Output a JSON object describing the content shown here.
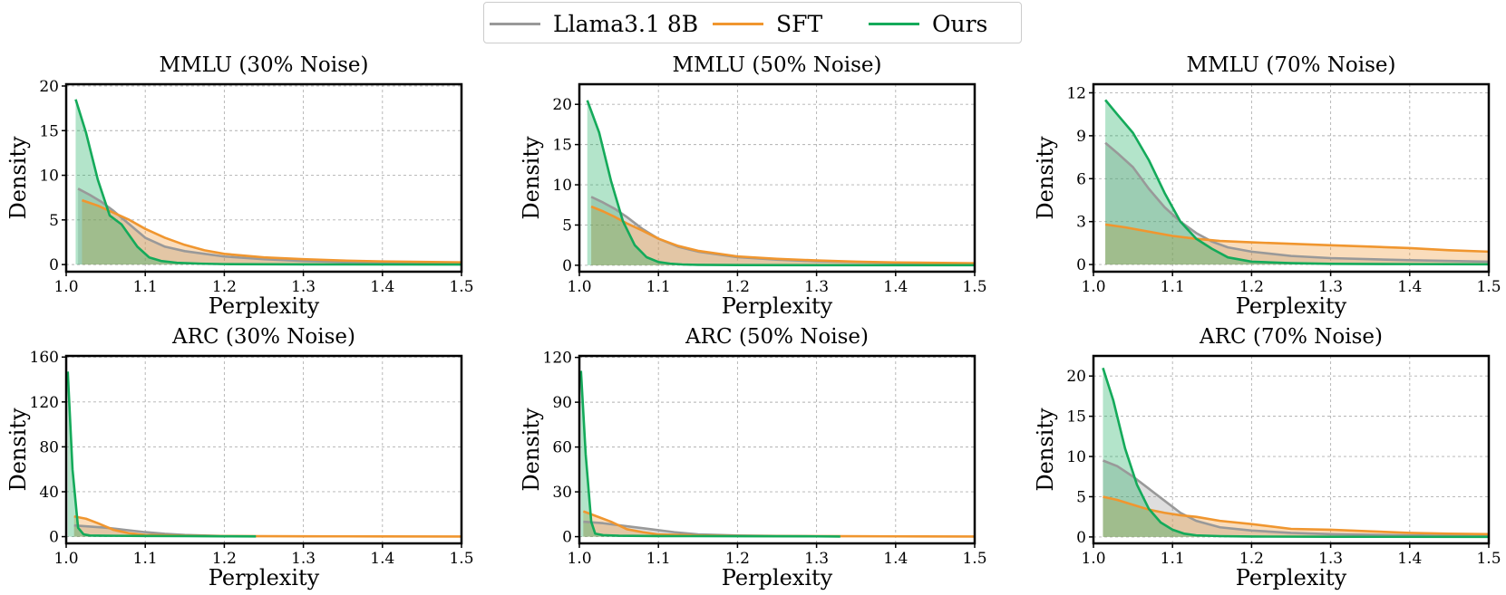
{
  "legend": {
    "items": [
      {
        "label": "Llama3.1 8B",
        "color": "#999999"
      },
      {
        "label": "SFT",
        "color": "#F0962F"
      },
      {
        "label": "Ours",
        "color": "#14AA5A"
      }
    ]
  },
  "chart_data": [
    {
      "type": "area",
      "title": "MMLU (30% Noise)",
      "xlabel": "Perplexity",
      "ylabel": "Density",
      "xlim": [
        1.0,
        1.5
      ],
      "ylim": [
        -0.8,
        20.2
      ],
      "xticks": [
        1.0,
        1.1,
        1.2,
        1.3,
        1.4,
        1.5
      ],
      "yticks": [
        0,
        5,
        10,
        15,
        20
      ],
      "grid": true,
      "series": [
        {
          "name": "Llama3.1 8B",
          "x": [
            1.015,
            1.03,
            1.045,
            1.06,
            1.08,
            1.1,
            1.125,
            1.15,
            1.2,
            1.25,
            1.3,
            1.35,
            1.4,
            1.5
          ],
          "y": [
            8.5,
            7.8,
            7.0,
            6.0,
            4.5,
            3.0,
            2.0,
            1.5,
            0.9,
            0.6,
            0.4,
            0.3,
            0.25,
            0.15
          ]
        },
        {
          "name": "SFT",
          "x": [
            1.02,
            1.04,
            1.06,
            1.08,
            1.1,
            1.125,
            1.15,
            1.175,
            1.2,
            1.25,
            1.3,
            1.35,
            1.4,
            1.5
          ],
          "y": [
            7.2,
            6.6,
            5.8,
            5.0,
            4.0,
            3.0,
            2.2,
            1.6,
            1.2,
            0.8,
            0.6,
            0.45,
            0.35,
            0.25
          ]
        },
        {
          "name": "Ours",
          "x": [
            1.012,
            1.025,
            1.04,
            1.055,
            1.07,
            1.09,
            1.105,
            1.12,
            1.14,
            1.17,
            1.2,
            1.3,
            1.5
          ],
          "y": [
            18.5,
            14.8,
            9.5,
            5.5,
            4.5,
            2.0,
            0.8,
            0.4,
            0.2,
            0.1,
            0.05,
            0.02,
            0.01
          ]
        }
      ]
    },
    {
      "type": "area",
      "title": "MMLU (50% Noise)",
      "xlabel": "Perplexity",
      "ylabel": "Density",
      "xlim": [
        1.0,
        1.5
      ],
      "ylim": [
        -0.8,
        22.5
      ],
      "xticks": [
        1.0,
        1.1,
        1.2,
        1.3,
        1.4,
        1.5
      ],
      "yticks": [
        0,
        5,
        10,
        15,
        20
      ],
      "grid": true,
      "series": [
        {
          "name": "Llama3.1 8B",
          "x": [
            1.015,
            1.03,
            1.045,
            1.06,
            1.08,
            1.1,
            1.125,
            1.15,
            1.2,
            1.25,
            1.3,
            1.35,
            1.4,
            1.5
          ],
          "y": [
            8.5,
            7.8,
            7.0,
            6.0,
            4.5,
            3.3,
            2.3,
            1.7,
            1.0,
            0.7,
            0.5,
            0.4,
            0.3,
            0.2
          ]
        },
        {
          "name": "SFT",
          "x": [
            1.015,
            1.03,
            1.045,
            1.06,
            1.08,
            1.1,
            1.125,
            1.15,
            1.2,
            1.25,
            1.3,
            1.35,
            1.4,
            1.5
          ],
          "y": [
            7.3,
            6.7,
            6.0,
            5.2,
            4.3,
            3.3,
            2.4,
            1.8,
            1.1,
            0.8,
            0.6,
            0.45,
            0.35,
            0.25
          ]
        },
        {
          "name": "Ours",
          "x": [
            1.01,
            1.025,
            1.04,
            1.055,
            1.07,
            1.085,
            1.1,
            1.115,
            1.13,
            1.15,
            1.2,
            1.3,
            1.5
          ],
          "y": [
            20.5,
            16.5,
            10.5,
            5.5,
            2.5,
            1.0,
            0.4,
            0.2,
            0.1,
            0.05,
            0.02,
            0.01,
            0.01
          ]
        }
      ]
    },
    {
      "type": "area",
      "title": "MMLU (70% Noise)",
      "xlabel": "Perplexity",
      "ylabel": "Density",
      "xlim": [
        1.0,
        1.5
      ],
      "ylim": [
        -0.5,
        12.6
      ],
      "xticks": [
        1.0,
        1.1,
        1.2,
        1.3,
        1.4,
        1.5
      ],
      "yticks": [
        0,
        3,
        6,
        9,
        12
      ],
      "grid": true,
      "series": [
        {
          "name": "Llama3.1 8B",
          "x": [
            1.015,
            1.03,
            1.05,
            1.07,
            1.09,
            1.11,
            1.13,
            1.15,
            1.17,
            1.2,
            1.25,
            1.3,
            1.4,
            1.5
          ],
          "y": [
            8.5,
            7.8,
            6.8,
            5.3,
            4.0,
            3.0,
            2.2,
            1.6,
            1.2,
            0.9,
            0.6,
            0.45,
            0.3,
            0.2
          ]
        },
        {
          "name": "SFT",
          "x": [
            1.015,
            1.04,
            1.07,
            1.1,
            1.13,
            1.16,
            1.2,
            1.25,
            1.3,
            1.35,
            1.4,
            1.45,
            1.5
          ],
          "y": [
            2.8,
            2.6,
            2.3,
            2.0,
            1.8,
            1.65,
            1.55,
            1.45,
            1.35,
            1.25,
            1.15,
            1.0,
            0.9
          ]
        },
        {
          "name": "Ours",
          "x": [
            1.015,
            1.03,
            1.05,
            1.07,
            1.09,
            1.11,
            1.13,
            1.15,
            1.17,
            1.2,
            1.25,
            1.3,
            1.4,
            1.5
          ],
          "y": [
            11.5,
            10.5,
            9.2,
            7.3,
            5.0,
            3.0,
            1.8,
            1.1,
            0.5,
            0.2,
            0.1,
            0.05,
            0.03,
            0.02
          ]
        }
      ]
    },
    {
      "type": "area",
      "title": "ARC (30% Noise)",
      "xlabel": "Perplexity",
      "ylabel": "Density",
      "xlim": [
        1.0,
        1.5
      ],
      "ylim": [
        -6,
        161
      ],
      "xticks": [
        1.0,
        1.1,
        1.2,
        1.3,
        1.4,
        1.5
      ],
      "yticks": [
        0,
        40,
        80,
        120,
        160
      ],
      "grid": true,
      "series": [
        {
          "name": "Llama3.1 8B",
          "x": [
            1.01,
            1.03,
            1.05,
            1.075,
            1.1,
            1.125,
            1.15,
            1.175,
            1.2,
            1.24
          ],
          "y": [
            10,
            9,
            8,
            6,
            4,
            2.5,
            1.5,
            1,
            0.5,
            0.3
          ]
        },
        {
          "name": "SFT",
          "x": [
            1.01,
            1.025,
            1.04,
            1.06,
            1.08,
            1.1,
            1.15,
            1.2,
            1.24,
            1.25,
            1.3,
            1.4,
            1.5
          ],
          "y": [
            18,
            16,
            12,
            6,
            3,
            1.5,
            0.8,
            0.5,
            0.4,
            0.4,
            0.3,
            0.2,
            0.1
          ]
        },
        {
          "name": "Ours",
          "x": [
            1.002,
            1.008,
            1.015,
            1.022,
            1.03,
            1.05,
            1.1,
            1.15,
            1.2,
            1.24
          ],
          "y": [
            147,
            60,
            8,
            2,
            1,
            0.8,
            0.6,
            0.5,
            0.3,
            0.2
          ]
        }
      ]
    },
    {
      "type": "area",
      "title": "ARC (50% Noise)",
      "xlabel": "Perplexity",
      "ylabel": "Density",
      "xlim": [
        1.0,
        1.5
      ],
      "ylim": [
        -4.5,
        121
      ],
      "xticks": [
        1.0,
        1.1,
        1.2,
        1.3,
        1.4,
        1.5
      ],
      "yticks": [
        0,
        30,
        60,
        90,
        120
      ],
      "grid": true,
      "series": [
        {
          "name": "Llama3.1 8B",
          "x": [
            1.005,
            1.03,
            1.06,
            1.09,
            1.12,
            1.15,
            1.2,
            1.25,
            1.3,
            1.33
          ],
          "y": [
            10,
            9,
            7,
            5,
            3,
            1.5,
            0.8,
            0.5,
            0.3,
            0.2
          ]
        },
        {
          "name": "SFT",
          "x": [
            1.005,
            1.02,
            1.04,
            1.06,
            1.08,
            1.1,
            1.15,
            1.2,
            1.3,
            1.33,
            1.4,
            1.5
          ],
          "y": [
            17,
            14,
            10,
            5,
            3,
            1.5,
            0.8,
            0.5,
            0.3,
            0.3,
            0.2,
            0.1
          ]
        },
        {
          "name": "Ours",
          "x": [
            1.002,
            1.008,
            1.015,
            1.02,
            1.03,
            1.05,
            1.1,
            1.2,
            1.3,
            1.33
          ],
          "y": [
            111,
            55,
            10,
            2,
            1,
            0.6,
            0.4,
            0.3,
            0.2,
            0.1
          ]
        }
      ]
    },
    {
      "type": "area",
      "title": "ARC (70% Noise)",
      "xlabel": "Perplexity",
      "ylabel": "Density",
      "xlim": [
        1.0,
        1.5
      ],
      "ylim": [
        -0.8,
        22.5
      ],
      "xticks": [
        1.0,
        1.1,
        1.2,
        1.3,
        1.4,
        1.5
      ],
      "yticks": [
        0,
        5,
        10,
        15,
        20
      ],
      "grid": true,
      "series": [
        {
          "name": "Llama3.1 8B",
          "x": [
            1.012,
            1.03,
            1.05,
            1.07,
            1.09,
            1.11,
            1.13,
            1.16,
            1.2,
            1.25,
            1.3,
            1.4,
            1.5
          ],
          "y": [
            9.5,
            8.8,
            7.5,
            6.0,
            4.5,
            3.0,
            2.0,
            1.2,
            0.8,
            0.5,
            0.35,
            0.2,
            0.1
          ]
        },
        {
          "name": "SFT",
          "x": [
            1.012,
            1.03,
            1.05,
            1.07,
            1.09,
            1.11,
            1.13,
            1.16,
            1.2,
            1.25,
            1.3,
            1.35,
            1.4,
            1.45,
            1.5
          ],
          "y": [
            5.0,
            4.6,
            4.0,
            3.4,
            3.0,
            2.7,
            2.5,
            2.0,
            1.6,
            1.0,
            0.9,
            0.7,
            0.5,
            0.4,
            0.35
          ]
        },
        {
          "name": "Ours",
          "x": [
            1.012,
            1.025,
            1.04,
            1.055,
            1.07,
            1.085,
            1.1,
            1.115,
            1.13,
            1.16,
            1.2,
            1.3,
            1.5
          ],
          "y": [
            21.0,
            17.0,
            11.0,
            6.5,
            3.5,
            1.8,
            0.9,
            0.4,
            0.2,
            0.1,
            0.05,
            0.02,
            0.01
          ]
        }
      ]
    }
  ]
}
